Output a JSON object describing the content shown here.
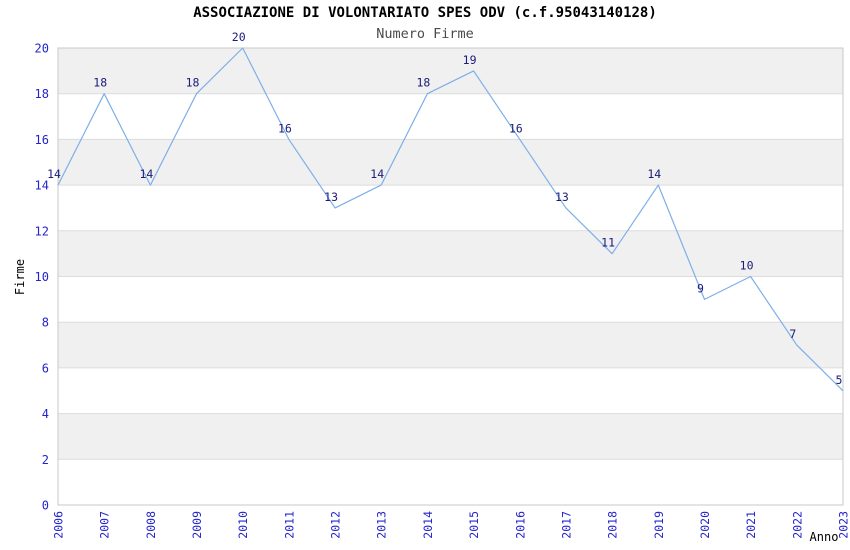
{
  "chart_data": {
    "type": "line",
    "title": "ASSOCIAZIONE DI VOLONTARIATO SPES ODV (c.f.95043140128)",
    "subtitle": "Numero Firme",
    "xlabel": "Anno",
    "ylabel": "Firme",
    "categories": [
      "2006",
      "2007",
      "2008",
      "2009",
      "2010",
      "2011",
      "2012",
      "2013",
      "2014",
      "2015",
      "2016",
      "2017",
      "2018",
      "2019",
      "2020",
      "2021",
      "2022",
      "2023"
    ],
    "values": [
      14,
      18,
      14,
      18,
      20,
      16,
      13,
      14,
      18,
      19,
      16,
      13,
      11,
      14,
      9,
      10,
      7,
      5
    ],
    "ylim": [
      0,
      20
    ],
    "ytick_step": 2,
    "yticks": [
      0,
      2,
      4,
      6,
      8,
      10,
      12,
      14,
      16,
      18,
      20
    ],
    "grid": "horizontal-bands-alternating",
    "legend": "none",
    "point_labels_visible": true,
    "colors": {
      "line": "#7dafe8",
      "point_label": "#1c1c7a",
      "tick_label": "#2424cc",
      "band": "#f0f0f0",
      "grid_line": "#dcdcdc",
      "border": "#c9c9c9",
      "title": "#000000",
      "subtitle": "#4a4a4a",
      "axis_title": "#000000"
    }
  }
}
